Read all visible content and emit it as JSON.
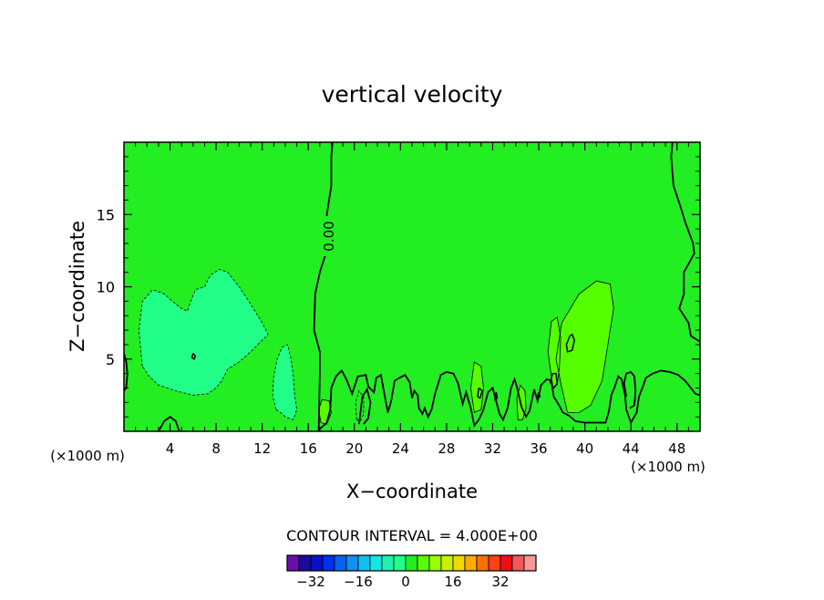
{
  "chart_data": {
    "type": "contour",
    "title": "vertical velocity",
    "xlabel": "X−coordinate",
    "ylabel": "Z−coordinate",
    "x_unit_label": "(×1000 m)",
    "y_unit_label": "(×1000 m)",
    "xlim": [
      0,
      50
    ],
    "ylim": [
      0,
      20
    ],
    "x_ticks": [
      4,
      8,
      12,
      16,
      20,
      24,
      28,
      32,
      36,
      40,
      44,
      48
    ],
    "y_ticks": [
      5,
      10,
      15
    ],
    "contour_label": "0.00",
    "contour_interval_text": "CONTOUR INTERVAL = 4.000E+00",
    "background_color": "#22ee22",
    "regions": [
      {
        "name": "updraft-4",
        "color": "#55ff00",
        "points": [
          [
            38.5,
            1.3
          ],
          [
            38,
            3
          ],
          [
            37.5,
            5
          ],
          [
            38,
            7.5
          ],
          [
            39.5,
            9.5
          ],
          [
            41,
            10.4
          ],
          [
            42.2,
            10.2
          ],
          [
            42.5,
            8.5
          ],
          [
            42,
            6
          ],
          [
            41.5,
            3.5
          ],
          [
            40.5,
            1.8
          ],
          [
            39.5,
            1.3
          ]
        ]
      },
      {
        "name": "updraft-left-4",
        "color": "#55ff00",
        "points": [
          [
            37.2,
            3.2
          ],
          [
            36.8,
            5.5
          ],
          [
            37.1,
            7.6
          ],
          [
            37.6,
            7.9
          ],
          [
            37.9,
            6.5
          ],
          [
            37.8,
            4.5
          ],
          [
            37.6,
            3.2
          ]
        ]
      },
      {
        "name": "updraft-30",
        "color": "#55ff00",
        "points": [
          [
            30.3,
            1.3
          ],
          [
            30.1,
            3
          ],
          [
            30.4,
            4.8
          ],
          [
            31,
            4.5
          ],
          [
            31.2,
            3
          ],
          [
            31,
            1.5
          ]
        ]
      },
      {
        "name": "updraft-34",
        "color": "#55ff00",
        "points": [
          [
            34.2,
            0.8
          ],
          [
            34.1,
            2.3
          ],
          [
            34.4,
            3.2
          ],
          [
            34.8,
            2.8
          ],
          [
            34.9,
            1.6
          ],
          [
            34.6,
            0.8
          ]
        ]
      },
      {
        "name": "updraft-17",
        "color": "#55ff00",
        "points": [
          [
            17.1,
            0.6
          ],
          [
            16.9,
            1.5
          ],
          [
            17.2,
            2.2
          ],
          [
            17.8,
            2.1
          ],
          [
            18,
            1.3
          ],
          [
            17.6,
            0.5
          ]
        ]
      },
      {
        "name": "downdraft-4",
        "color": "#22ff88",
        "points": [
          [
            1.6,
            4.5
          ],
          [
            1.3,
            7
          ],
          [
            1.6,
            9
          ],
          [
            2.5,
            9.8
          ],
          [
            3.5,
            9.5
          ],
          [
            4.2,
            9
          ],
          [
            5,
            8.5
          ],
          [
            5.5,
            8.3
          ],
          [
            5.8,
            9
          ],
          [
            6.2,
            9.8
          ],
          [
            7,
            10
          ],
          [
            7.5,
            10.8
          ],
          [
            8.3,
            11.2
          ],
          [
            9,
            11
          ],
          [
            10,
            10
          ],
          [
            11,
            8.8
          ],
          [
            12,
            7.5
          ],
          [
            12.5,
            6.7
          ],
          [
            11,
            5.5
          ],
          [
            10,
            4.8
          ],
          [
            9,
            4.3
          ],
          [
            8.5,
            3.5
          ],
          [
            8,
            3
          ],
          [
            7.3,
            2.6
          ],
          [
            6,
            2.5
          ],
          [
            4.5,
            2.8
          ],
          [
            3,
            3.2
          ],
          [
            2.2,
            3.8
          ]
        ]
      },
      {
        "name": "downdraft-14",
        "color": "#22ff88",
        "points": [
          [
            13.2,
            1.5
          ],
          [
            12.9,
            2.5
          ],
          [
            13,
            3.8
          ],
          [
            13.3,
            5
          ],
          [
            13.7,
            5.8
          ],
          [
            14.2,
            6
          ],
          [
            14.5,
            5
          ],
          [
            14.7,
            3.8
          ],
          [
            14.8,
            2.6
          ],
          [
            15,
            1.5
          ],
          [
            14.7,
            0.8
          ],
          [
            14,
            1
          ],
          [
            13.6,
            1.3
          ]
        ]
      }
    ],
    "zero_contours": [
      [
        [
          18.1,
          20
        ],
        [
          18,
          19
        ],
        [
          18,
          17
        ],
        [
          17.6,
          15
        ],
        [
          17.6,
          12.5
        ],
        [
          17,
          11
        ],
        [
          16.6,
          9.5
        ],
        [
          16.5,
          7
        ],
        [
          17,
          5.5
        ],
        [
          17,
          4
        ],
        [
          16.9,
          0
        ]
      ],
      [
        [
          47.6,
          20
        ],
        [
          47.5,
          19
        ],
        [
          47.7,
          17
        ],
        [
          48.4,
          15.3
        ],
        [
          48.7,
          14.5
        ],
        [
          49.4,
          13
        ],
        [
          49.5,
          12.3
        ],
        [
          48.6,
          11
        ],
        [
          48.6,
          9.5
        ],
        [
          48.2,
          8.5
        ],
        [
          49,
          7.5
        ],
        [
          49.2,
          6.6
        ],
        [
          50,
          6.2
        ]
      ],
      [
        [
          0,
          5.4
        ],
        [
          0.2,
          4.8
        ],
        [
          0.3,
          4
        ],
        [
          0.2,
          3
        ],
        [
          0,
          2.8
        ]
      ],
      [
        [
          3,
          0
        ],
        [
          3.5,
          0.7
        ],
        [
          4,
          1
        ],
        [
          4.5,
          0.7
        ],
        [
          4.8,
          0
        ]
      ],
      [
        [
          16.9,
          0.1
        ],
        [
          17.2,
          0.3
        ],
        [
          17.6,
          0.6
        ],
        [
          17.9,
          1.5
        ],
        [
          18,
          3
        ],
        [
          18.4,
          3.8
        ],
        [
          18.9,
          4.2
        ],
        [
          19.3,
          3.6
        ],
        [
          19.8,
          2.6
        ],
        [
          20.3,
          3.8
        ],
        [
          21,
          3.9
        ],
        [
          21.2,
          3.1
        ],
        [
          21.7,
          2.7
        ],
        [
          21.9,
          3.7
        ],
        [
          22.3,
          3.9
        ],
        [
          22.6,
          2.6
        ],
        [
          22.9,
          1.3
        ],
        [
          23.2,
          2.1
        ],
        [
          23.5,
          3.5
        ],
        [
          23.9,
          3.7
        ],
        [
          24.4,
          3.9
        ],
        [
          24.8,
          3.4
        ],
        [
          25,
          2.3
        ],
        [
          25.2,
          2.8
        ],
        [
          25.5,
          2.5
        ],
        [
          25.6,
          1.6
        ],
        [
          25.9,
          1.2
        ],
        [
          26.1,
          1.6
        ],
        [
          26.4,
          1
        ],
        [
          26.7,
          1.5
        ],
        [
          27,
          2.6
        ],
        [
          27.5,
          3.9
        ],
        [
          28,
          4.1
        ],
        [
          28.6,
          4
        ],
        [
          29,
          3.3
        ],
        [
          29.4,
          1.9
        ],
        [
          29.7,
          2.7
        ],
        [
          30.1,
          1.6
        ],
        [
          30.4,
          0.4
        ],
        [
          30.8,
          0.8
        ],
        [
          31.2,
          1.5
        ],
        [
          31.6,
          2.7
        ],
        [
          32,
          3
        ],
        [
          32.6,
          1.2
        ],
        [
          32.9,
          0.8
        ],
        [
          33.3,
          1.6
        ],
        [
          33.6,
          3
        ],
        [
          33.9,
          3.6
        ],
        [
          34.1,
          3.1
        ],
        [
          34.5,
          1.7
        ],
        [
          34.9,
          1
        ],
        [
          35.2,
          1.4
        ],
        [
          35.6,
          2.9
        ],
        [
          35.9,
          2.1
        ],
        [
          36.2,
          3.2
        ],
        [
          36.7,
          3.6
        ],
        [
          37.1,
          3.5
        ],
        [
          37.3,
          2.4
        ],
        [
          37.7,
          1.9
        ],
        [
          38.1,
          1.3
        ],
        [
          38.6,
          1.1
        ],
        [
          39.2,
          0.7
        ],
        [
          40,
          0.6
        ],
        [
          41,
          0.6
        ],
        [
          41.8,
          0.6
        ],
        [
          42.1,
          1.4
        ],
        [
          42.3,
          2.5
        ],
        [
          42.6,
          3.1
        ],
        [
          42.9,
          3.8
        ],
        [
          43.2,
          3.6
        ],
        [
          43.5,
          2.5
        ],
        [
          43.6,
          1.5
        ],
        [
          44,
          0.6
        ],
        [
          44.5,
          1.3
        ],
        [
          44.7,
          2.4
        ],
        [
          45,
          3
        ],
        [
          45.3,
          3.7
        ],
        [
          45.9,
          4
        ],
        [
          46.6,
          4.2
        ],
        [
          47.4,
          4.1
        ],
        [
          48.1,
          3.9
        ],
        [
          48.7,
          3.5
        ],
        [
          49.2,
          3
        ],
        [
          49.6,
          2.6
        ],
        [
          50,
          2.5
        ]
      ],
      [
        [
          43.6,
          2.4
        ],
        [
          43.4,
          3.3
        ],
        [
          43.6,
          4
        ],
        [
          44,
          4.1
        ],
        [
          44.3,
          3.8
        ],
        [
          44.4,
          2.8
        ],
        [
          44.3,
          1.8
        ],
        [
          43.9,
          1.6
        ]
      ],
      [
        [
          20.4,
          0.5
        ],
        [
          20.7,
          2.4
        ],
        [
          21.1,
          2.9
        ],
        [
          21.4,
          2
        ],
        [
          21.2,
          0.9
        ],
        [
          20.8,
          0.5
        ]
      ]
    ],
    "thin_contours": [
      [
        [
          30.4,
          1.3
        ],
        [
          30.1,
          3
        ],
        [
          30.4,
          4.8
        ],
        [
          31,
          4.5
        ],
        [
          31.2,
          3
        ],
        [
          31,
          1.5
        ],
        [
          30.4,
          1.3
        ]
      ],
      [
        [
          34.2,
          0.8
        ],
        [
          34.1,
          2.3
        ],
        [
          34.4,
          3.2
        ],
        [
          34.8,
          2.8
        ],
        [
          34.9,
          1.6
        ],
        [
          34.6,
          0.8
        ],
        [
          34.2,
          0.8
        ]
      ],
      [
        [
          17.1,
          0.6
        ],
        [
          16.9,
          1.5
        ],
        [
          17.2,
          2.2
        ],
        [
          17.8,
          2.1
        ],
        [
          18,
          1.3
        ],
        [
          17.6,
          0.5
        ],
        [
          17.1,
          0.6
        ]
      ],
      [
        [
          38.5,
          1.3
        ],
        [
          38,
          3
        ],
        [
          37.5,
          5
        ],
        [
          38,
          7.5
        ],
        [
          39.5,
          9.5
        ],
        [
          41,
          10.4
        ],
        [
          42.2,
          10.2
        ],
        [
          42.5,
          8.5
        ],
        [
          42,
          6
        ],
        [
          41.5,
          3.5
        ],
        [
          40.5,
          1.8
        ],
        [
          39.5,
          1.3
        ],
        [
          38.5,
          1.3
        ]
      ],
      [
        [
          37.2,
          3.2
        ],
        [
          36.8,
          5.5
        ],
        [
          37.1,
          7.6
        ],
        [
          37.6,
          7.9
        ],
        [
          37.9,
          6.5
        ],
        [
          37.8,
          4.5
        ],
        [
          37.6,
          3.2
        ]
      ]
    ],
    "dashed_contours": [
      [
        [
          1.6,
          4.5
        ],
        [
          1.3,
          7
        ],
        [
          1.6,
          9
        ],
        [
          2.5,
          9.8
        ],
        [
          3.5,
          9.5
        ],
        [
          4.2,
          9
        ],
        [
          5,
          8.5
        ],
        [
          5.5,
          8.3
        ],
        [
          5.8,
          9
        ],
        [
          6.2,
          9.8
        ],
        [
          7,
          10
        ],
        [
          7.5,
          10.8
        ],
        [
          8.3,
          11.2
        ],
        [
          9,
          11
        ],
        [
          10,
          10
        ],
        [
          11,
          8.8
        ],
        [
          12,
          7.5
        ],
        [
          12.5,
          6.7
        ],
        [
          11,
          5.5
        ],
        [
          10,
          4.8
        ],
        [
          9,
          4.3
        ],
        [
          8.5,
          3.5
        ],
        [
          8,
          3
        ],
        [
          7.3,
          2.6
        ],
        [
          6,
          2.5
        ],
        [
          4.5,
          2.8
        ],
        [
          3,
          3.2
        ],
        [
          2.2,
          3.8
        ],
        [
          1.6,
          4.5
        ]
      ],
      [
        [
          13.2,
          1.5
        ],
        [
          12.9,
          2.5
        ],
        [
          13,
          3.8
        ],
        [
          13.3,
          5
        ],
        [
          13.7,
          5.8
        ],
        [
          14.2,
          6
        ],
        [
          14.5,
          5
        ],
        [
          14.7,
          3.8
        ],
        [
          14.8,
          2.6
        ],
        [
          15,
          1.5
        ],
        [
          14.7,
          0.8
        ],
        [
          14,
          1
        ],
        [
          13.6,
          1.3
        ],
        [
          13.2,
          1.5
        ]
      ],
      [
        [
          20.2,
          0.8
        ],
        [
          20.1,
          2
        ],
        [
          20.4,
          2.8
        ],
        [
          20.8,
          2.4
        ],
        [
          20.8,
          1.2
        ],
        [
          20.5,
          0.7
        ],
        [
          20.2,
          0.8
        ]
      ]
    ],
    "extrema_marks": [
      [
        [
          6,
          5.4
        ],
        [
          5.9,
          5.1
        ],
        [
          6.1,
          5
        ],
        [
          6.2,
          5.2
        ],
        [
          6,
          5.4
        ]
      ],
      [
        [
          38.7,
          6.6
        ],
        [
          38.4,
          6
        ],
        [
          38.5,
          5.5
        ],
        [
          38.9,
          5.6
        ],
        [
          39.1,
          6.3
        ],
        [
          38.9,
          6.7
        ],
        [
          38.7,
          6.6
        ]
      ],
      [
        [
          37.2,
          4
        ],
        [
          37,
          3.4
        ],
        [
          37.3,
          3
        ],
        [
          37.6,
          3.3
        ],
        [
          37.5,
          4
        ],
        [
          37.2,
          4
        ]
      ],
      [
        [
          30.8,
          3
        ],
        [
          30.7,
          2.4
        ],
        [
          30.9,
          2.3
        ],
        [
          31.1,
          2.8
        ],
        [
          30.8,
          3
        ]
      ],
      [
        [
          32.3,
          2.7
        ],
        [
          32.2,
          2.2
        ],
        [
          32.4,
          2.3
        ],
        [
          32.3,
          2.7
        ]
      ],
      [
        [
          36,
          2.7
        ],
        [
          35.9,
          2.4
        ],
        [
          36.1,
          2.4
        ],
        [
          36,
          2.7
        ]
      ]
    ],
    "colorbar": {
      "colors": [
        "#6a0dad",
        "#1a0aa0",
        "#0a10c8",
        "#0030f0",
        "#0a60ee",
        "#1090f0",
        "#10c0f0",
        "#10e8e0",
        "#20f0b0",
        "#22ff88",
        "#22ee22",
        "#55ff00",
        "#99ff00",
        "#c8f000",
        "#f0d800",
        "#ffaa00",
        "#ff7000",
        "#ff4010",
        "#ee1010",
        "#f05a5a",
        "#f59898"
      ],
      "tick_values": [
        -32,
        -16,
        0,
        16,
        32
      ],
      "value_min": -40,
      "value_step": 4
    }
  }
}
